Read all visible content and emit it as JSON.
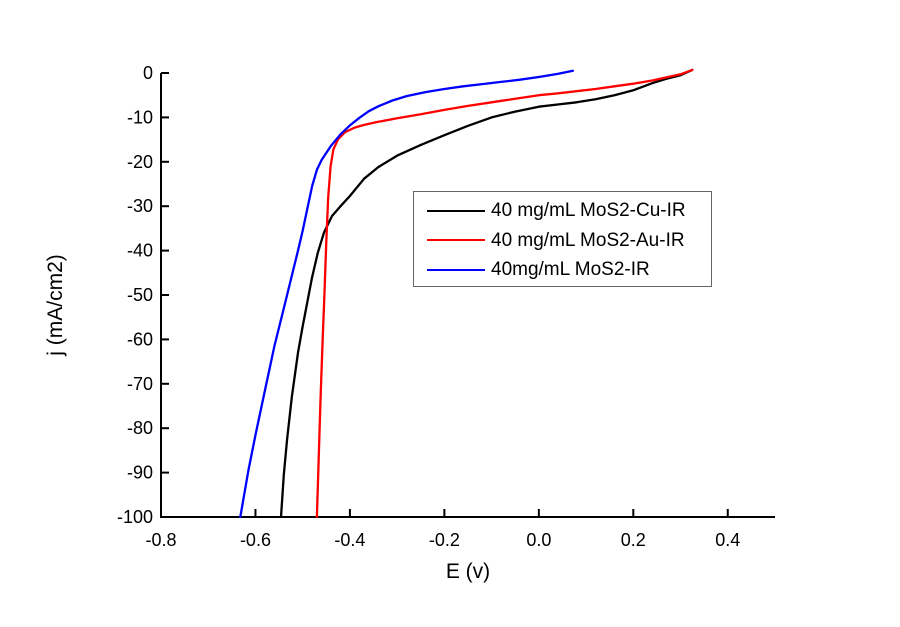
{
  "page": {
    "background": "#ffffff"
  },
  "chart_data": {
    "type": "line",
    "title": "",
    "xlabel": "E (v)",
    "ylabel": "j (mA/cm2)",
    "xlim": [
      -0.8,
      0.5
    ],
    "ylim": [
      -100,
      0
    ],
    "grid": false,
    "axis_color": "#000000",
    "tick_direction": "in",
    "xticks": {
      "values": [
        -0.8,
        -0.6,
        -0.4,
        -0.2,
        0,
        0.2,
        0.4
      ],
      "labels": [
        "-0.8",
        "-0.6",
        "-0.4",
        "-0.2",
        "0.0",
        "0.2",
        "0.4"
      ]
    },
    "yticks": {
      "values": [
        0,
        -10,
        -20,
        -30,
        -40,
        -50,
        -60,
        -70,
        -80,
        -90,
        -100
      ],
      "labels": [
        "0",
        "-10",
        "-20",
        "-30",
        "-40",
        "-50",
        "-60",
        "-70",
        "-80",
        "-90",
        "-100"
      ]
    },
    "legend": {
      "position": "inside-right-middle",
      "border_color": "#666666",
      "background": "#ffffff"
    },
    "series": [
      {
        "name": "40 mg/mL MoS2-Cu-IR",
        "color": "#000000",
        "points": [
          [
            0.325,
            0.7
          ],
          [
            0.3,
            -0.5
          ],
          [
            0.27,
            -1.3
          ],
          [
            0.24,
            -2.3
          ],
          [
            0.2,
            -3.9
          ],
          [
            0.16,
            -5.0
          ],
          [
            0.12,
            -5.9
          ],
          [
            0.08,
            -6.6
          ],
          [
            0.04,
            -7.1
          ],
          [
            0.0,
            -7.6
          ],
          [
            -0.05,
            -8.7
          ],
          [
            -0.1,
            -10.0
          ],
          [
            -0.15,
            -11.9
          ],
          [
            -0.2,
            -14.0
          ],
          [
            -0.25,
            -16.2
          ],
          [
            -0.3,
            -18.6
          ],
          [
            -0.34,
            -21.2
          ],
          [
            -0.37,
            -23.8
          ],
          [
            -0.4,
            -27.7
          ],
          [
            -0.42,
            -30.0
          ],
          [
            -0.438,
            -32.2
          ],
          [
            -0.455,
            -36.0
          ],
          [
            -0.468,
            -40.5
          ],
          [
            -0.48,
            -46.0
          ],
          [
            -0.49,
            -51.5
          ],
          [
            -0.5,
            -57.0
          ],
          [
            -0.51,
            -63.0
          ],
          [
            -0.523,
            -73.0
          ],
          [
            -0.533,
            -82.5
          ],
          [
            -0.54,
            -90.5
          ],
          [
            -0.546,
            -100
          ]
        ]
      },
      {
        "name": "40 mg/mL MoS2-Au-IR",
        "color": "#ff0000",
        "points": [
          [
            0.325,
            0.7
          ],
          [
            0.3,
            -0.3
          ],
          [
            0.27,
            -1.0
          ],
          [
            0.24,
            -1.7
          ],
          [
            0.2,
            -2.4
          ],
          [
            0.16,
            -3.0
          ],
          [
            0.12,
            -3.6
          ],
          [
            0.08,
            -4.1
          ],
          [
            0.04,
            -4.6
          ],
          [
            0.0,
            -5.0
          ],
          [
            -0.05,
            -5.8
          ],
          [
            -0.1,
            -6.6
          ],
          [
            -0.15,
            -7.4
          ],
          [
            -0.2,
            -8.3
          ],
          [
            -0.25,
            -9.3
          ],
          [
            -0.3,
            -10.2
          ],
          [
            -0.34,
            -11.0
          ],
          [
            -0.37,
            -11.7
          ],
          [
            -0.39,
            -12.3
          ],
          [
            -0.41,
            -13.3
          ],
          [
            -0.425,
            -14.9
          ],
          [
            -0.435,
            -17.2
          ],
          [
            -0.441,
            -21.0
          ],
          [
            -0.446,
            -28.0
          ],
          [
            -0.45,
            -38.0
          ],
          [
            -0.454,
            -50.0
          ],
          [
            -0.458,
            -61.0
          ],
          [
            -0.462,
            -73.0
          ],
          [
            -0.466,
            -86.0
          ],
          [
            -0.47,
            -100
          ]
        ]
      },
      {
        "name": "40mg/mL MoS2-IR",
        "color": "#0000ff",
        "points": [
          [
            0.072,
            0.5
          ],
          [
            0.04,
            -0.2
          ],
          [
            0.0,
            -0.9
          ],
          [
            -0.04,
            -1.5
          ],
          [
            -0.08,
            -2.0
          ],
          [
            -0.12,
            -2.5
          ],
          [
            -0.16,
            -3.0
          ],
          [
            -0.2,
            -3.6
          ],
          [
            -0.24,
            -4.3
          ],
          [
            -0.28,
            -5.2
          ],
          [
            -0.31,
            -6.2
          ],
          [
            -0.34,
            -7.5
          ],
          [
            -0.36,
            -8.6
          ],
          [
            -0.38,
            -10.1
          ],
          [
            -0.4,
            -11.8
          ],
          [
            -0.42,
            -13.8
          ],
          [
            -0.44,
            -16.4
          ],
          [
            -0.46,
            -19.6
          ],
          [
            -0.47,
            -21.8
          ],
          [
            -0.48,
            -25.5
          ],
          [
            -0.49,
            -30.5
          ],
          [
            -0.5,
            -35.5
          ],
          [
            -0.51,
            -40.0
          ],
          [
            -0.525,
            -46.5
          ],
          [
            -0.54,
            -53.0
          ],
          [
            -0.56,
            -61.5
          ],
          [
            -0.583,
            -73.0
          ],
          [
            -0.6,
            -81.5
          ],
          [
            -0.615,
            -89.5
          ],
          [
            -0.632,
            -100
          ]
        ]
      }
    ]
  }
}
